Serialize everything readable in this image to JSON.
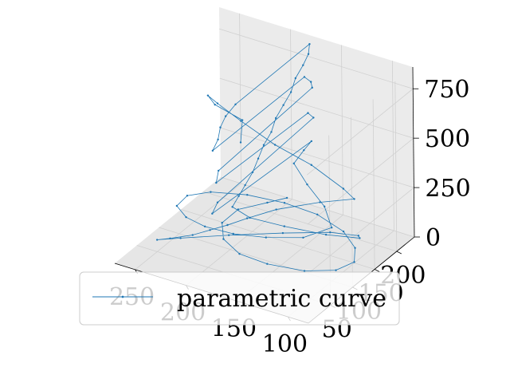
{
  "chart_data": {
    "type": "line",
    "projection": "3d",
    "series": [
      {
        "name": "parametric curve",
        "color": "#1f77b4",
        "marker": "dot",
        "points": [
          [
            180,
            80,
            610
          ],
          [
            200,
            130,
            600
          ],
          [
            240,
            160,
            560
          ],
          [
            260,
            190,
            520
          ],
          [
            255,
            200,
            470
          ],
          [
            230,
            195,
            430
          ],
          [
            190,
            180,
            400
          ],
          [
            150,
            170,
            380
          ],
          [
            110,
            150,
            360
          ],
          [
            95,
            140,
            350
          ],
          [
            120,
            120,
            330
          ],
          [
            150,
            90,
            300
          ],
          [
            170,
            70,
            260
          ],
          [
            185,
            60,
            220
          ],
          [
            200,
            55,
            180
          ],
          [
            215,
            50,
            140
          ],
          [
            235,
            45,
            100
          ],
          [
            250,
            50,
            60
          ],
          [
            240,
            80,
            30
          ],
          [
            210,
            120,
            20
          ],
          [
            170,
            150,
            40
          ],
          [
            130,
            165,
            80
          ],
          [
            100,
            160,
            120
          ],
          [
            90,
            140,
            160
          ],
          [
            110,
            110,
            200
          ],
          [
            140,
            85,
            240
          ],
          [
            165,
            65,
            280
          ],
          [
            180,
            60,
            320
          ],
          [
            178,
            70,
            360
          ],
          [
            176,
            80,
            400
          ],
          [
            175,
            95,
            440
          ],
          [
            176,
            110,
            480
          ],
          [
            177,
            125,
            520
          ],
          [
            176,
            140,
            560
          ],
          [
            178,
            155,
            600
          ],
          [
            177,
            170,
            640
          ],
          [
            176,
            185,
            680
          ],
          [
            178,
            200,
            720
          ],
          [
            177,
            215,
            760
          ],
          [
            176,
            225,
            800
          ],
          [
            177,
            230,
            840
          ],
          [
            176,
            60,
            845
          ],
          [
            177,
            40,
            820
          ],
          [
            178,
            30,
            780
          ],
          [
            176,
            20,
            740
          ],
          [
            177,
            10,
            700
          ],
          [
            178,
            220,
            690
          ],
          [
            176,
            230,
            650
          ],
          [
            177,
            235,
            610
          ],
          [
            178,
            25,
            570
          ],
          [
            176,
            15,
            530
          ],
          [
            177,
            225,
            500
          ],
          [
            176,
            235,
            460
          ],
          [
            177,
            20,
            420
          ],
          [
            178,
            10,
            380
          ],
          [
            176,
            230,
            350
          ],
          [
            177,
            215,
            330
          ],
          [
            176,
            190,
            310
          ],
          [
            150,
            160,
            300
          ],
          [
            120,
            130,
            290
          ],
          [
            100,
            100,
            270
          ],
          [
            115,
            70,
            250
          ],
          [
            145,
            55,
            230
          ],
          [
            175,
            50,
            210
          ],
          [
            205,
            55,
            190
          ],
          [
            230,
            70,
            170
          ],
          [
            250,
            95,
            150
          ],
          [
            255,
            130,
            130
          ],
          [
            245,
            160,
            110
          ],
          [
            220,
            185,
            90
          ],
          [
            190,
            200,
            70
          ],
          [
            160,
            205,
            50
          ],
          [
            130,
            195,
            30
          ],
          [
            110,
            175,
            15
          ],
          [
            100,
            150,
            5
          ],
          [
            105,
            120,
            10
          ],
          [
            125,
            95,
            20
          ],
          [
            155,
            80,
            35
          ],
          [
            180,
            75,
            55
          ],
          [
            200,
            85,
            80
          ],
          [
            210,
            105,
            110
          ],
          [
            205,
            130,
            140
          ],
          [
            185,
            150,
            170
          ],
          [
            170,
            160,
            200
          ]
        ]
      }
    ],
    "x_ticks": [
      "100",
      "150",
      "200",
      "250"
    ],
    "y_ticks": [
      "50",
      "100",
      "150",
      "200"
    ],
    "z_ticks": [
      "0",
      "250",
      "500",
      "750"
    ],
    "xlim": [
      80,
      270
    ],
    "ylim": [
      0,
      240
    ],
    "zlim": [
      0,
      860
    ],
    "grid": true,
    "pane_color": "#f2f2f2",
    "legend": {
      "placement": "lower-center",
      "label": "parametric curve"
    },
    "title": "",
    "xlabel": "",
    "ylabel": "",
    "zlabel": ""
  }
}
